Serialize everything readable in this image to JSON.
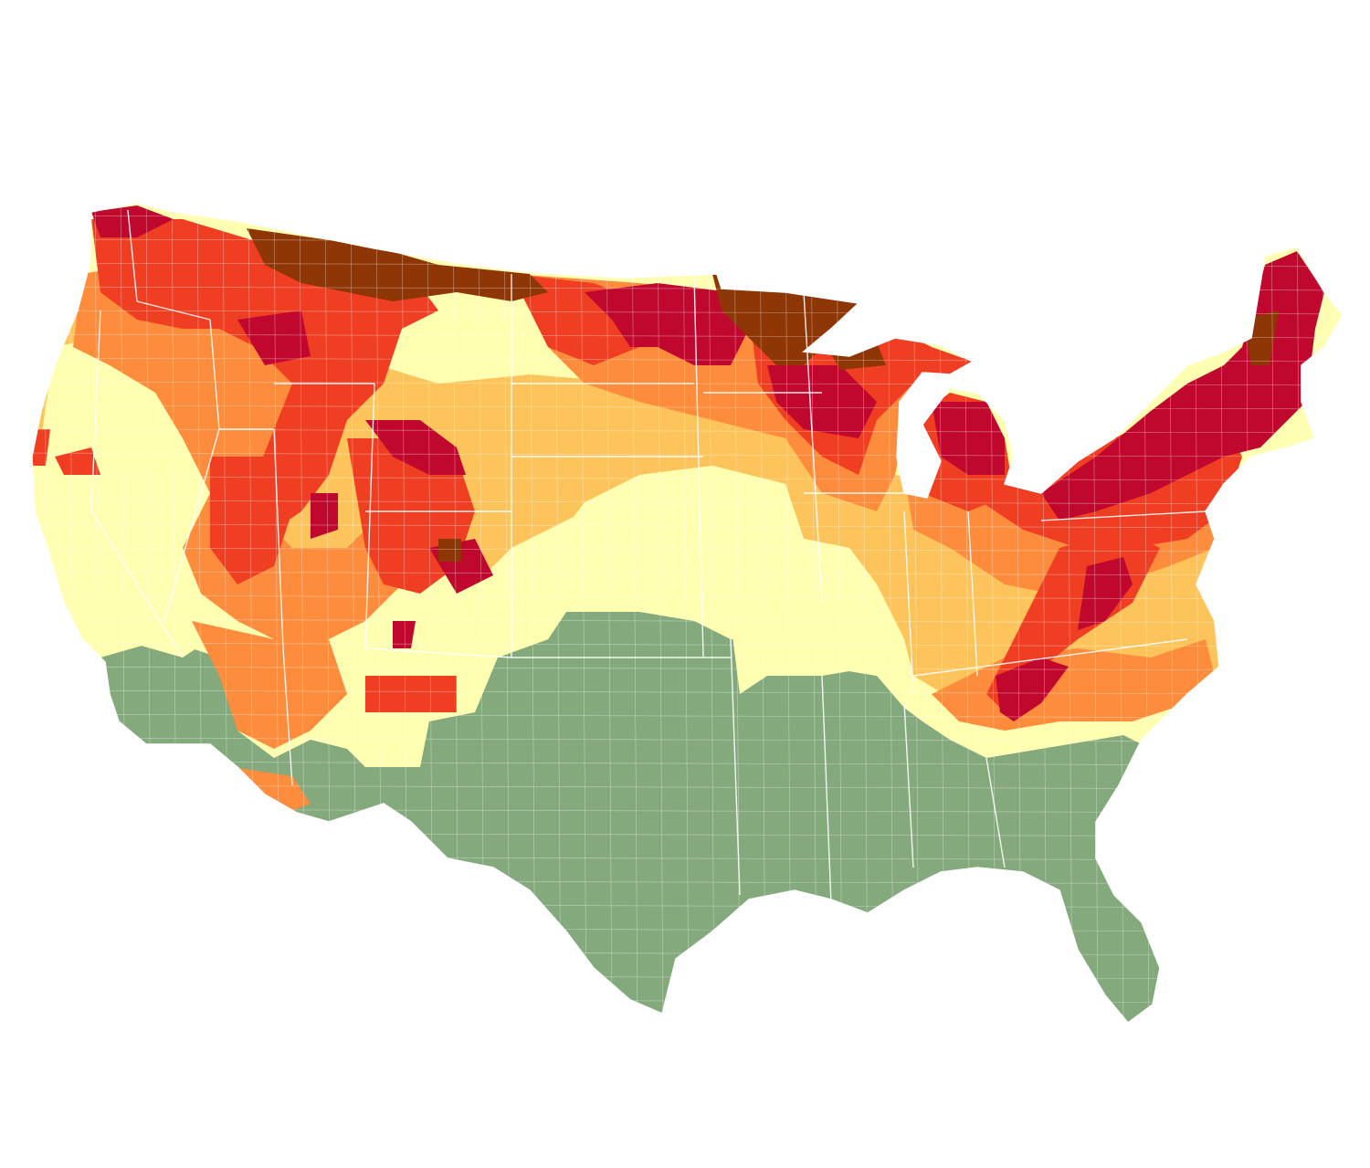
{
  "map": {
    "type": "choropleth",
    "region": "contiguous-united-states",
    "unit_level": "county",
    "palette": {
      "past_peak": "#8f3606",
      "peak": "#c0082f",
      "near_peak": "#ef3e22",
      "high": "#fd8c3d",
      "moderate": "#fec45c",
      "low": "#ffffb2",
      "no_change": "#84a97c",
      "boundary": "#ffffff"
    },
    "legend": null,
    "title": ""
  }
}
